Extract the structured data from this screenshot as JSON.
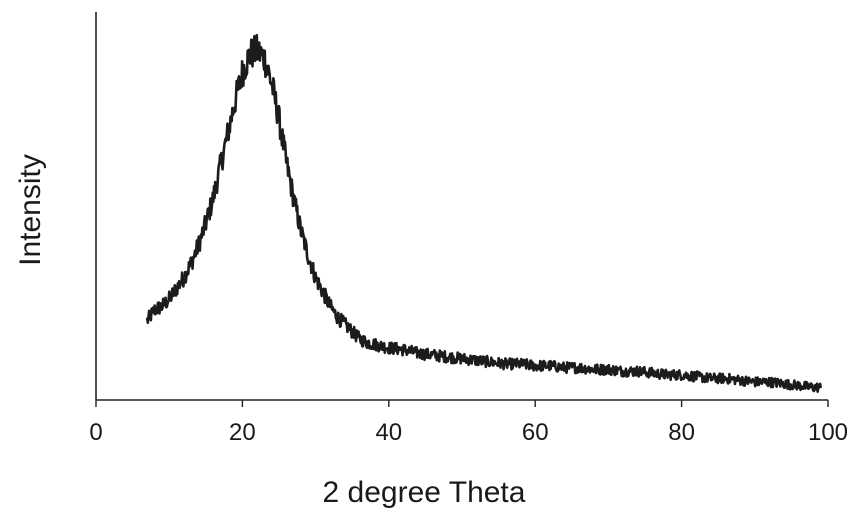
{
  "chart_data": {
    "type": "line",
    "title": "",
    "xlabel": "2 degree Theta",
    "ylabel": "Intensity",
    "xlim": [
      0,
      100
    ],
    "ylim": [
      0,
      1
    ],
    "x_ticks": [
      0,
      20,
      40,
      60,
      80,
      100
    ],
    "y_ticks": [],
    "grid": false,
    "legend": "none",
    "noisy": true,
    "series": [
      {
        "color": "#1c1c1c",
        "x": [
          7,
          8,
          9,
          10,
          11,
          12,
          13,
          14,
          15,
          16,
          17,
          18,
          19,
          20,
          21,
          22,
          23,
          24,
          25,
          26,
          27,
          28,
          29,
          30,
          31,
          32,
          33,
          34,
          35,
          36,
          37,
          38,
          39,
          40,
          42,
          44,
          46,
          48,
          50,
          52,
          54,
          56,
          58,
          60,
          62,
          64,
          66,
          68,
          70,
          72,
          74,
          76,
          78,
          80,
          82,
          84,
          86,
          88,
          90,
          92,
          94,
          96,
          98,
          99
        ],
        "values": [
          0.22,
          0.25,
          0.26,
          0.28,
          0.31,
          0.34,
          0.38,
          0.43,
          0.49,
          0.56,
          0.65,
          0.74,
          0.83,
          0.91,
          0.96,
          0.97,
          0.95,
          0.88,
          0.78,
          0.66,
          0.56,
          0.47,
          0.4,
          0.34,
          0.3,
          0.26,
          0.23,
          0.21,
          0.19,
          0.17,
          0.16,
          0.155,
          0.15,
          0.145,
          0.14,
          0.13,
          0.125,
          0.12,
          0.115,
          0.11,
          0.105,
          0.1,
          0.1,
          0.095,
          0.095,
          0.09,
          0.09,
          0.085,
          0.085,
          0.08,
          0.08,
          0.075,
          0.07,
          0.07,
          0.065,
          0.06,
          0.06,
          0.055,
          0.05,
          0.05,
          0.045,
          0.04,
          0.035,
          0.035
        ]
      }
    ]
  }
}
